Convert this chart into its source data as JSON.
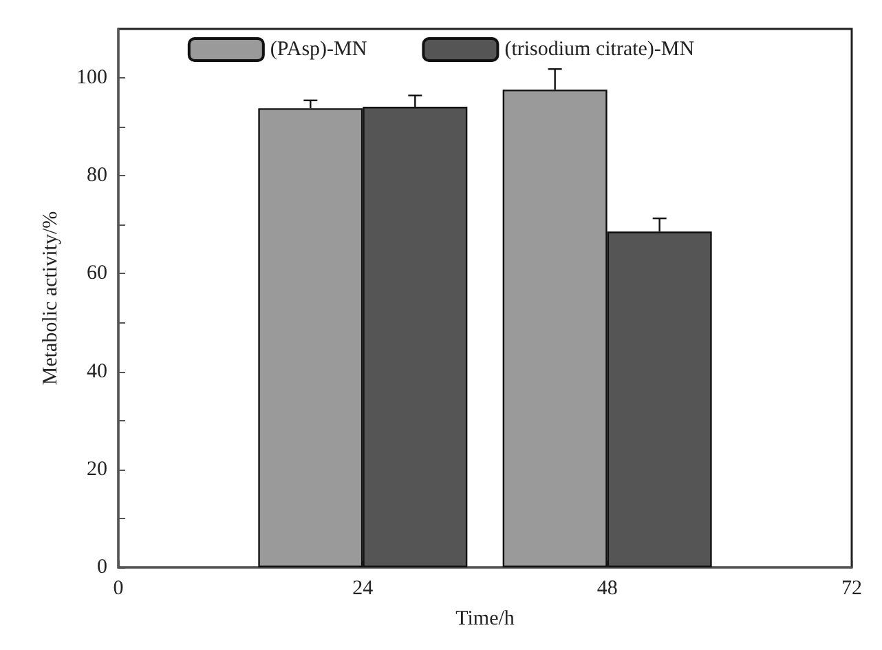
{
  "chart_data": {
    "type": "bar",
    "xlabel": "Time/h",
    "ylabel": "Metabolic activity/%",
    "x": [
      24,
      48
    ],
    "series": [
      {
        "name": "(PAsp)-MN",
        "color": "#9a9a9a",
        "values": [
          93.8,
          97.6
        ],
        "errors": [
          [
            93.8,
            95.4
          ],
          [
            97.6,
            101.8
          ]
        ]
      },
      {
        "name": "(trisodium citrate)-MN",
        "color": "#555555",
        "values": [
          94.1,
          68.6
        ],
        "errors": [
          [
            94.1,
            96.4
          ],
          [
            68.6,
            71.3
          ]
        ]
      }
    ],
    "xlim": [
      0,
      72
    ],
    "xticks": [
      0,
      24,
      48,
      72
    ],
    "ylim": [
      0,
      110
    ],
    "yticks": [
      0,
      {
        "value": 10,
        "label": null
      },
      20,
      {
        "value": 30,
        "label": null
      },
      40,
      {
        "value": 50,
        "label": null
      },
      60,
      {
        "value": 70,
        "label": null
      },
      80,
      {
        "value": 90,
        "label": null
      },
      100
    ],
    "legend": "top",
    "grid": false
  }
}
